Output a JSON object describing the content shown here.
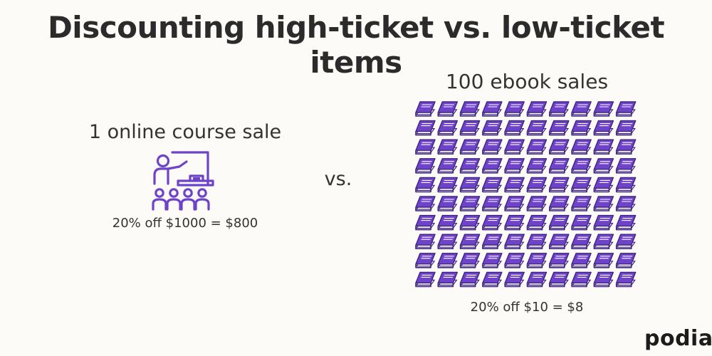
{
  "title": "Discounting high-ticket vs. low-ticket items",
  "left": {
    "label": "1 online course sale",
    "icon": "teacher-classroom-icon",
    "caption": "20% off $1000 = $800"
  },
  "separator": "vs.",
  "right": {
    "label": "100 ebook sales",
    "icon": "book-icon",
    "count": 100,
    "caption": "20% off $10 = $8"
  },
  "brand": "podia",
  "colors": {
    "accent": "#6f43c9",
    "accent_dark": "#3e2480",
    "background": "#fdfbf7",
    "text": "#2f2f2f"
  }
}
